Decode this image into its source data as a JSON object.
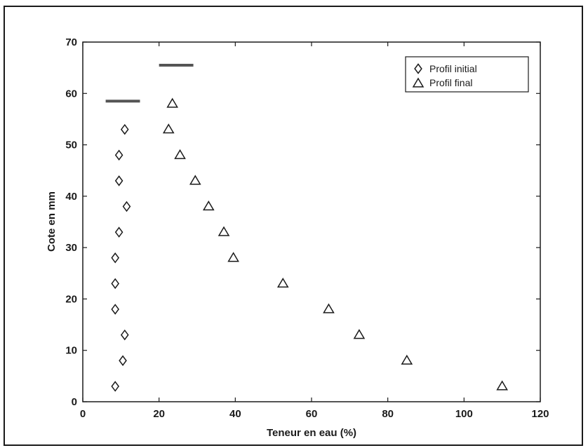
{
  "chart_data": {
    "type": "scatter",
    "title": "",
    "xlabel": "Teneur en eau (%)",
    "ylabel": "Cote en mm",
    "xlim": [
      0,
      120
    ],
    "ylim": [
      0,
      70
    ],
    "xticks": [
      0,
      20,
      40,
      60,
      80,
      100,
      120
    ],
    "yticks": [
      0,
      10,
      20,
      30,
      40,
      50,
      60,
      70
    ],
    "grid": false,
    "legend_position": "top-right",
    "series": [
      {
        "name": "Profil initial",
        "marker": "diamond",
        "color": "#1a1a1a",
        "points": [
          {
            "x": 8.5,
            "y": 3
          },
          {
            "x": 10.5,
            "y": 8
          },
          {
            "x": 11,
            "y": 13
          },
          {
            "x": 8.5,
            "y": 18
          },
          {
            "x": 8.5,
            "y": 23
          },
          {
            "x": 8.5,
            "y": 28
          },
          {
            "x": 9.5,
            "y": 33
          },
          {
            "x": 11.5,
            "y": 38
          },
          {
            "x": 9.5,
            "y": 43
          },
          {
            "x": 9.5,
            "y": 48
          },
          {
            "x": 11,
            "y": 53
          }
        ]
      },
      {
        "name": "Profil final",
        "marker": "triangle",
        "color": "#1a1a1a",
        "points": [
          {
            "x": 110,
            "y": 3
          },
          {
            "x": 85,
            "y": 8
          },
          {
            "x": 72.5,
            "y": 13
          },
          {
            "x": 64.5,
            "y": 18
          },
          {
            "x": 52.5,
            "y": 23
          },
          {
            "x": 39.5,
            "y": 28
          },
          {
            "x": 37,
            "y": 33
          },
          {
            "x": 33,
            "y": 38
          },
          {
            "x": 29.5,
            "y": 43
          },
          {
            "x": 25.5,
            "y": 48
          },
          {
            "x": 22.5,
            "y": 53
          },
          {
            "x": 23.5,
            "y": 58
          }
        ]
      }
    ],
    "reference_lines": [
      {
        "x1": 6,
        "x2": 15,
        "y": 58.5,
        "color": "#555555"
      },
      {
        "x1": 20,
        "x2": 29,
        "y": 65.5,
        "color": "#555555"
      }
    ]
  }
}
